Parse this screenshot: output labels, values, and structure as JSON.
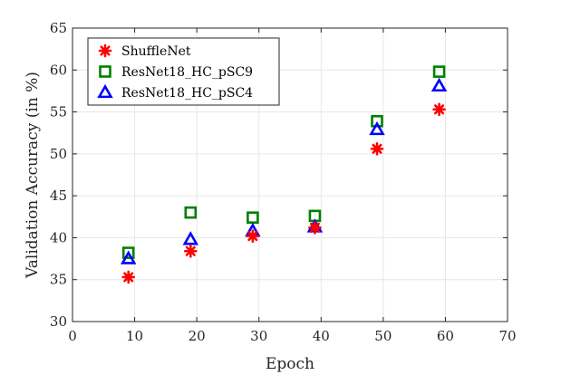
{
  "chart_data": {
    "type": "scatter",
    "title": "",
    "xlabel": "Epoch",
    "ylabel": "Validation Accuracy (in %)",
    "xlim": [
      0,
      70
    ],
    "ylim": [
      30,
      65
    ],
    "xticks": [
      0,
      10,
      20,
      30,
      40,
      50,
      60,
      70
    ],
    "yticks": [
      30,
      35,
      40,
      45,
      50,
      55,
      60,
      65
    ],
    "grid": true,
    "legend_position": "top-left",
    "series": [
      {
        "name": "ShuffleNet",
        "marker": "asterisk",
        "color": "#ff0000",
        "x": [
          9,
          19,
          29,
          39,
          49,
          59
        ],
        "y": [
          35.3,
          38.4,
          40.2,
          41.2,
          50.6,
          55.3
        ]
      },
      {
        "name": "ResNet18_HC_pSC9",
        "marker": "square",
        "color": "#008000",
        "x": [
          9,
          19,
          29,
          39,
          49,
          59
        ],
        "y": [
          38.2,
          43.0,
          42.4,
          42.6,
          53.9,
          59.8
        ]
      },
      {
        "name": "ResNet18_HC_pSC4",
        "marker": "triangle",
        "color": "#0000ff",
        "x": [
          9,
          19,
          29,
          39,
          49,
          59
        ],
        "y": [
          37.5,
          39.8,
          40.8,
          41.3,
          52.9,
          58.1
        ]
      }
    ]
  }
}
